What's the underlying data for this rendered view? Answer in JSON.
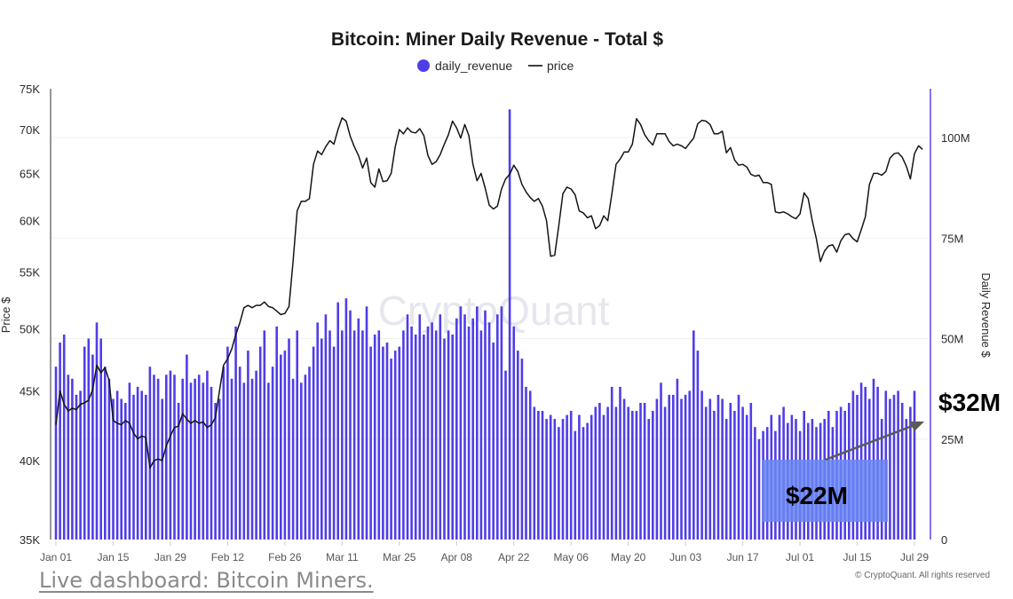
{
  "chart_data": {
    "type": "bar+line",
    "title": "Bitcoin: Miner Daily Revenue - Total $",
    "legend": [
      {
        "name": "daily_revenue",
        "marker": "circle",
        "color": "#4f3ee8"
      },
      {
        "name": "price",
        "marker": "line",
        "color": "#111111"
      }
    ],
    "legend_position": "top-center",
    "x_start": "Jan 01",
    "x_days": 213,
    "x_ticks": [
      {
        "label": "Jan 01",
        "day": 0
      },
      {
        "label": "Jan 15",
        "day": 14
      },
      {
        "label": "Jan 29",
        "day": 28
      },
      {
        "label": "Feb 12",
        "day": 42
      },
      {
        "label": "Feb 26",
        "day": 56
      },
      {
        "label": "Mar 11",
        "day": 70
      },
      {
        "label": "Mar 25",
        "day": 84
      },
      {
        "label": "Apr 08",
        "day": 98
      },
      {
        "label": "Apr 22",
        "day": 112
      },
      {
        "label": "May 06",
        "day": 126
      },
      {
        "label": "May 20",
        "day": 140
      },
      {
        "label": "Jun 03",
        "day": 154
      },
      {
        "label": "Jun 17",
        "day": 168
      },
      {
        "label": "Jul 01",
        "day": 182
      },
      {
        "label": "Jul 15",
        "day": 196
      },
      {
        "label": "Jul 29",
        "day": 210
      }
    ],
    "left_axis": {
      "label": "Price $",
      "scale": "log",
      "range": [
        35000,
        75000
      ],
      "ticks": [
        {
          "v": 35000,
          "label": "35K"
        },
        {
          "v": 40000,
          "label": "40K"
        },
        {
          "v": 45000,
          "label": "45K"
        },
        {
          "v": 50000,
          "label": "50K"
        },
        {
          "v": 55000,
          "label": "55K"
        },
        {
          "v": 60000,
          "label": "60K"
        },
        {
          "v": 65000,
          "label": "65K"
        },
        {
          "v": 70000,
          "label": "70K"
        },
        {
          "v": 75000,
          "label": "75K"
        }
      ]
    },
    "right_axis": {
      "label": "Daily Revenue $",
      "scale": "linear",
      "range": [
        0,
        112000000
      ],
      "ticks": [
        {
          "v": 0,
          "label": "0"
        },
        {
          "v": 25000000,
          "label": "25M"
        },
        {
          "v": 50000000,
          "label": "50M"
        },
        {
          "v": 75000000,
          "label": "75M"
        },
        {
          "v": 100000000,
          "label": "100M"
        }
      ]
    },
    "grid": true,
    "series": [
      {
        "name": "daily_revenue",
        "type": "bar",
        "axis": "right",
        "unit": "M USD",
        "values": [
          43,
          49,
          51,
          41,
          40,
          36,
          37,
          48,
          50,
          46,
          54,
          50,
          43,
          40,
          35,
          37,
          35,
          34,
          39,
          36,
          38,
          37,
          36,
          43,
          41,
          40,
          35,
          41,
          42,
          41,
          34,
          40,
          46,
          39,
          40,
          41,
          39,
          42,
          38,
          34,
          35,
          43,
          48,
          40,
          53,
          43,
          39,
          47,
          40,
          42,
          48,
          52,
          39,
          43,
          53,
          46,
          47,
          50,
          40,
          52,
          39,
          41,
          43,
          48,
          54,
          50,
          56,
          52,
          48,
          59,
          52,
          60,
          57,
          52,
          55,
          52,
          58,
          48,
          51,
          52,
          48,
          49,
          45,
          47,
          48,
          52,
          56,
          53,
          51,
          56,
          51,
          53,
          54,
          52,
          56,
          50,
          52,
          51,
          55,
          58,
          56,
          53,
          55,
          58,
          52,
          57,
          54,
          49,
          56,
          58,
          42,
          107,
          53,
          47,
          45,
          38,
          37,
          33,
          32,
          32,
          30,
          31,
          30,
          28,
          30,
          31,
          32,
          27,
          31,
          28,
          29,
          31,
          33,
          34,
          31,
          33,
          38,
          33,
          38,
          35,
          33,
          32,
          32,
          34,
          34,
          30,
          32,
          35,
          39,
          33,
          36,
          36,
          40,
          35,
          36,
          37,
          52,
          47,
          37,
          33,
          35,
          32,
          36,
          35,
          30,
          34,
          32,
          36,
          33,
          31,
          34,
          28,
          25,
          27,
          28,
          31,
          27,
          31,
          33,
          29,
          31,
          30,
          27,
          32,
          29,
          30,
          28,
          29,
          30,
          32,
          28,
          32,
          33,
          32,
          34,
          37,
          36,
          39,
          38,
          35,
          40,
          38,
          30,
          37,
          35,
          36,
          37,
          34,
          30,
          33,
          37
        ],
        "color": "#4f3ee8"
      },
      {
        "name": "price",
        "type": "line",
        "axis": "left",
        "unit": "K USD",
        "values": [
          42.5,
          45.0,
          44.0,
          43.5,
          43.7,
          43.6,
          44.0,
          44.1,
          44.3,
          45.1,
          47.0,
          46.4,
          46.8,
          45.8,
          42.8,
          42.6,
          42.5,
          42.8,
          42.6,
          41.9,
          41.5,
          41.7,
          41.6,
          39.5,
          40.0,
          40.1,
          40.0,
          41.0,
          41.7,
          42.3,
          42.4,
          43.3,
          42.9,
          42.6,
          42.8,
          42.6,
          42.7,
          42.3,
          42.5,
          43.0,
          45.0,
          47.0,
          47.5,
          48.3,
          49.5,
          50.5,
          51.8,
          52.0,
          51.8,
          52.0,
          52.0,
          52.3,
          51.9,
          51.8,
          51.5,
          51.2,
          51.3,
          51.9,
          56.0,
          61.0,
          62.0,
          62.0,
          62.3,
          66.0,
          67.5,
          67.1,
          68.0,
          68.7,
          68.3,
          70.0,
          71.4,
          71.0,
          69.2,
          68.0,
          67.0,
          65.6,
          66.7,
          64.0,
          63.5,
          65.5,
          64.1,
          64.2,
          65.0,
          68.0,
          70.0,
          69.5,
          70.2,
          69.7,
          69.6,
          70.1,
          69.3,
          67.0,
          66.0,
          66.3,
          67.1,
          68.3,
          69.4,
          71.0,
          70.2,
          69.0,
          70.6,
          69.3,
          66.0,
          64.2,
          65.0,
          63.4,
          61.6,
          61.2,
          61.5,
          63.3,
          64.4,
          64.9,
          65.9,
          65.2,
          63.8,
          63.0,
          62.4,
          62.0,
          62.3,
          61.5,
          60.0,
          56.5,
          56.6,
          59.5,
          62.8,
          63.5,
          63.3,
          62.7,
          61.0,
          60.8,
          60.3,
          60.5,
          59.2,
          59.5,
          60.5,
          60.0,
          62.8,
          66.0,
          66.6,
          67.4,
          67.4,
          68.3,
          71.3,
          70.6,
          69.4,
          68.7,
          68.2,
          69.5,
          69.5,
          69.5,
          68.6,
          68.1,
          68.3,
          68.1,
          67.8,
          68.4,
          69.0,
          70.7,
          71.1,
          71.0,
          70.6,
          69.5,
          69.5,
          69.8,
          67.3,
          67.9,
          66.5,
          65.9,
          66.0,
          65.7,
          64.9,
          64.7,
          64.8,
          64.0,
          64.0,
          63.8,
          60.9,
          60.8,
          60.9,
          60.7,
          60.4,
          60.2,
          60.7,
          62.9,
          62.3,
          60.0,
          58.2,
          56.0,
          57.0,
          57.5,
          57.6,
          56.9,
          58.0,
          58.6,
          58.7,
          58.2,
          57.9,
          59.1,
          60.4,
          63.8,
          65.0,
          65.0,
          64.8,
          65.2,
          66.7,
          67.2,
          67.3,
          66.8,
          65.8,
          64.4,
          67.2,
          68.1,
          67.7
        ]
      }
    ],
    "annotations": [
      {
        "text": "$32M",
        "type": "label",
        "near": "right-axis"
      },
      {
        "text": "$22M",
        "type": "highlight-box",
        "near": "bottom-right"
      }
    ],
    "watermark": "CryptoQuant",
    "copyright": "© CryptoQuant. All rights reserved"
  },
  "footer": {
    "link_text": "Live dashboard: Bitcoin Miners."
  }
}
